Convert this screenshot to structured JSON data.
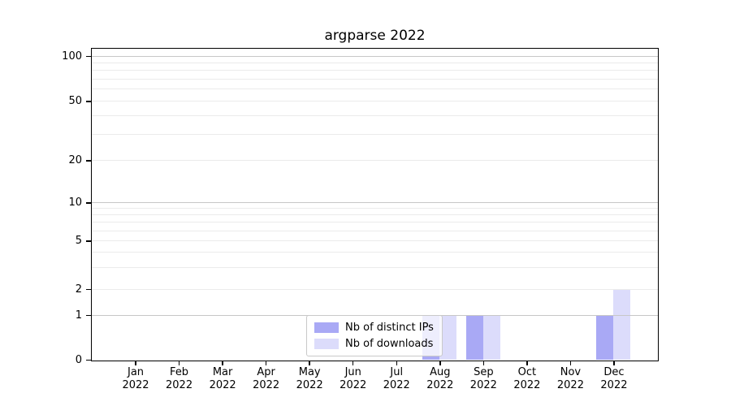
{
  "chart_data": {
    "type": "bar",
    "title": "argparse 2022",
    "categories": [
      "Jan",
      "Feb",
      "Mar",
      "Apr",
      "May",
      "Jun",
      "Jul",
      "Aug",
      "Sep",
      "Oct",
      "Nov",
      "Dec"
    ],
    "year_label": "2022",
    "series": [
      {
        "name": "Nb of distinct IPs",
        "color": "#a9a9f5",
        "values": [
          0,
          0,
          0,
          0,
          0,
          0,
          0,
          1,
          1,
          0,
          0,
          1
        ]
      },
      {
        "name": "Nb of downloads",
        "color": "#dcdcfb",
        "values": [
          0,
          0,
          0,
          0,
          0,
          0,
          0,
          1,
          1,
          0,
          0,
          2
        ]
      }
    ],
    "xlabel": "",
    "ylabel": "",
    "y_scale": "symlog",
    "ylim": [
      0,
      113
    ],
    "y_ticks": [
      0,
      1,
      2,
      5,
      10,
      20,
      50,
      100
    ],
    "y_major_gridlines": [
      1,
      10,
      100
    ],
    "y_minor_gridlines": [
      2,
      3,
      4,
      5,
      6,
      7,
      8,
      9,
      20,
      30,
      40,
      50,
      60,
      70,
      80,
      90
    ],
    "grid": true,
    "legend_position": "lower center"
  }
}
